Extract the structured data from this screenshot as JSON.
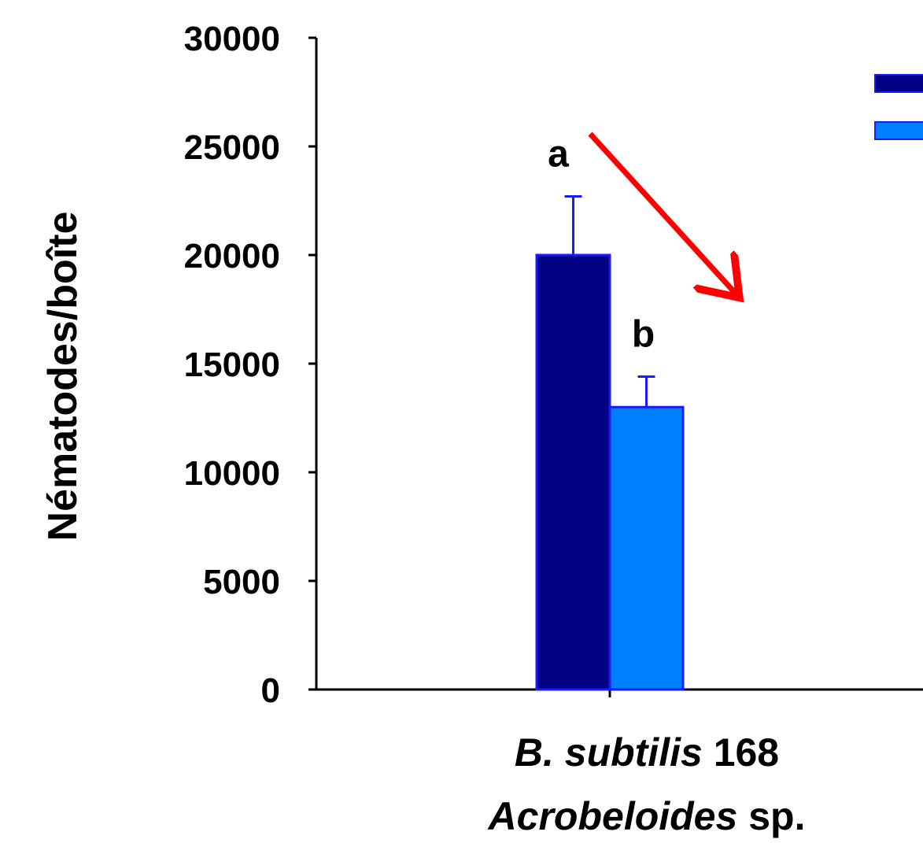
{
  "chart_data": {
    "type": "bar",
    "title": "",
    "xlabel": "",
    "ylabel": "Nématodes/boîte",
    "ylim": [
      0,
      30000
    ],
    "yticks": [
      0,
      5000,
      10000,
      15000,
      20000,
      25000,
      30000
    ],
    "categories": [
      {
        "line1_italic": "B. subtilis",
        "line1_rest": " 168",
        "line2_italic": "Acrobeloides",
        "line2_rest": " sp."
      }
    ],
    "series": [
      {
        "values": [
          20000
        ],
        "error": [
          2700
        ],
        "letter": "a",
        "color": "#000080"
      },
      {
        "values": [
          13000
        ],
        "error": [
          1400
        ],
        "letter": "b",
        "color": "#0080FF"
      }
    ],
    "legend_position": "top-right",
    "annotation": {
      "type": "arrow",
      "color": "#FF0000",
      "direction": "down-right"
    },
    "grid": false
  }
}
